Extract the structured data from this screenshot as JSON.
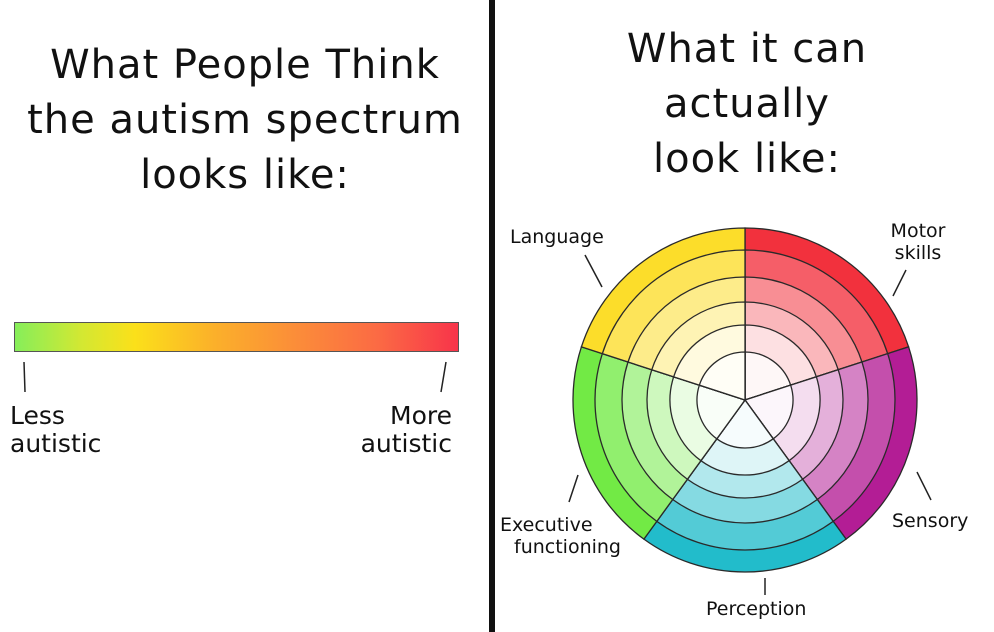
{
  "left": {
    "title_lines": [
      "What People Think",
      "the autism spectrum",
      "looks like:"
    ],
    "bar_colors": [
      "#86ee5a",
      "#fbe01a",
      "#fb8a3a",
      "#f8344a"
    ],
    "less_label": [
      "Less",
      "autistic"
    ],
    "more_label": [
      "More",
      "autistic"
    ]
  },
  "right": {
    "title_lines": [
      "What it can",
      "actually",
      "look like:"
    ],
    "segments": [
      {
        "label": [
          "Motor",
          "skills"
        ],
        "color": "#f2313d"
      },
      {
        "label": [
          "Sensory"
        ],
        "color": "#b31d95"
      },
      {
        "label": [
          "Perception"
        ],
        "color": "#22bccb"
      },
      {
        "label": [
          "Executive",
          "functioning"
        ],
        "color": "#72ea45"
      },
      {
        "label": [
          "Language"
        ],
        "color": "#fcdd2a"
      }
    ],
    "ring_count": 6
  }
}
